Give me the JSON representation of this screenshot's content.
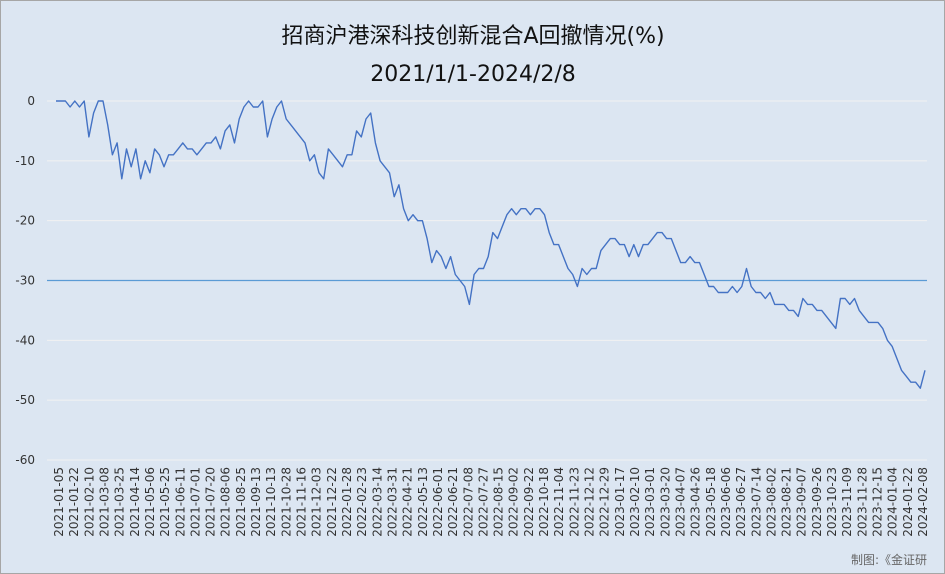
{
  "chart_data": {
    "type": "line",
    "title": "招商沪港深科技创新混合A回撤情况(%)",
    "subtitle": "2021/1/1-2024/2/8",
    "ylim": [
      -60,
      0
    ],
    "yticks": [
      0,
      -10,
      -20,
      -30,
      -40,
      -50,
      -60
    ],
    "grid": true,
    "legend": "none",
    "colors": {
      "series": "#4472c4",
      "reference_line": "#5b9bd5",
      "grid": "#f2f2f2"
    },
    "reference_line": {
      "y": -30
    },
    "x_tick_labels": [
      "2021-01-05",
      "2021-01-22",
      "2021-02-10",
      "2021-03-08",
      "2021-03-25",
      "2021-04-14",
      "2021-05-06",
      "2021-05-25",
      "2021-06-11",
      "2021-07-01",
      "2021-07-20",
      "2021-08-06",
      "2021-08-25",
      "2021-09-13",
      "2021-10-13",
      "2021-10-28",
      "2021-11-16",
      "2021-12-03",
      "2021-12-22",
      "2022-01-28",
      "2022-02-23",
      "2022-03-14",
      "2022-03-31",
      "2022-04-21",
      "2022-05-13",
      "2022-06-01",
      "2022-06-21",
      "2022-07-08",
      "2022-07-27",
      "2022-08-15",
      "2022-09-02",
      "2022-09-22",
      "2022-10-18",
      "2022-11-04",
      "2022-11-23",
      "2022-12-12",
      "2022-12-29",
      "2023-01-17",
      "2023-02-10",
      "2023-03-01",
      "2023-03-20",
      "2023-04-07",
      "2023-04-26",
      "2023-05-18",
      "2023-06-06",
      "2023-06-27",
      "2023-07-14",
      "2023-08-02",
      "2023-08-21",
      "2023-09-07",
      "2023-09-26",
      "2023-10-23",
      "2023-11-09",
      "2023-11-28",
      "2023-12-15",
      "2024-01-04",
      "2024-01-22",
      "2024-02-08"
    ],
    "series": [
      {
        "values": [
          0,
          0,
          0,
          -1,
          0,
          -1,
          0,
          -6,
          -2,
          0,
          0,
          -4,
          -9,
          -7,
          -13,
          -8,
          -11,
          -8,
          -13,
          -10,
          -12,
          -8,
          -9,
          -11,
          -9,
          -9,
          -8,
          -7,
          -8,
          -8,
          -9,
          -8,
          -7,
          -7,
          -6,
          -8,
          -5,
          -4,
          -7,
          -3,
          -1,
          0,
          -1,
          -1,
          0,
          -6,
          -3,
          -1,
          0,
          -3,
          -4,
          -5,
          -6,
          -7,
          -10,
          -9,
          -12,
          -13,
          -8,
          -9,
          -10,
          -11,
          -9,
          -9,
          -5,
          -6,
          -3,
          -2,
          -7,
          -10,
          -11,
          -12,
          -16,
          -14,
          -18,
          -20,
          -19,
          -20,
          -20,
          -23,
          -27,
          -25,
          -26,
          -28,
          -26,
          -29,
          -30,
          -31,
          -34,
          -29,
          -28,
          -28,
          -26,
          -22,
          -23,
          -21,
          -19,
          -18,
          -19,
          -18,
          -18,
          -19,
          -18,
          -18,
          -19,
          -22,
          -24,
          -24,
          -26,
          -28,
          -29,
          -31,
          -28,
          -29,
          -28,
          -28,
          -25,
          -24,
          -23,
          -23,
          -24,
          -24,
          -26,
          -24,
          -26,
          -24,
          -24,
          -23,
          -22,
          -22,
          -23,
          -23,
          -25,
          -27,
          -27,
          -26,
          -27,
          -27,
          -29,
          -31,
          -31,
          -32,
          -32,
          -32,
          -31,
          -32,
          -31,
          -28,
          -31,
          -32,
          -32,
          -33,
          -32,
          -34,
          -34,
          -34,
          -35,
          -35,
          -36,
          -33,
          -34,
          -34,
          -35,
          -35,
          -36,
          -37,
          -38,
          -33,
          -33,
          -34,
          -33,
          -35,
          -36,
          -37,
          -37,
          -37,
          -38,
          -40,
          -41,
          -43,
          -45,
          -46,
          -47,
          -47,
          -48,
          -45
        ]
      }
    ]
  },
  "credit": "制图:《金证研"
}
